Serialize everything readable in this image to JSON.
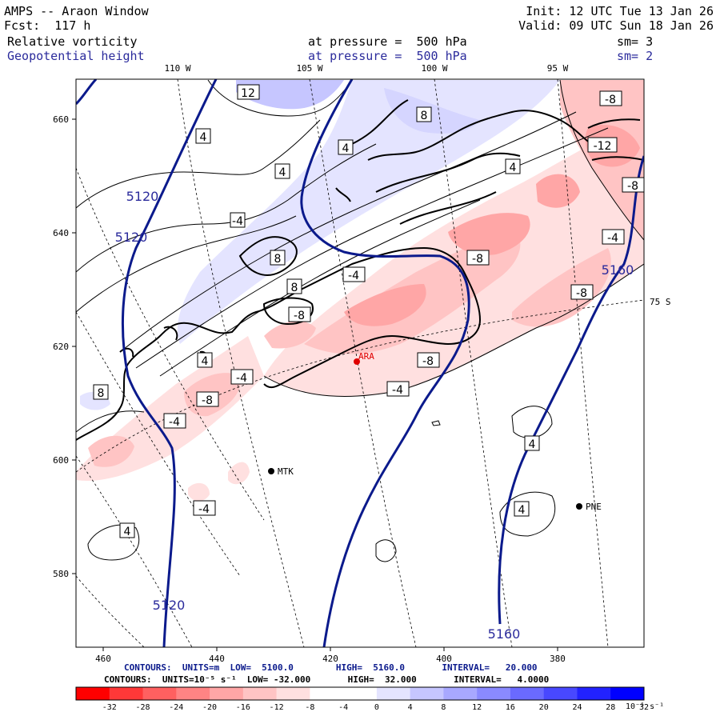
{
  "header": {
    "app": "AMPS -- Araon Window",
    "init": "Init: 12 UTC Tue 13 Jan 26",
    "forecast": "Fcst:  117 h",
    "valid": "Valid: 09 UTC Sun 18 Jan 26",
    "field1": "Relative vorticity",
    "field1_level": "at pressure =  500 hPa",
    "field1_sm": "sm= 3",
    "field2": "Geopotential height",
    "field2_level": "at pressure =  500 hPa",
    "field2_sm": "sm= 2"
  },
  "map": {
    "top_lon_labels": [
      "110 W",
      "105 W",
      "100 W",
      "95 W"
    ],
    "right_lat_label": "75 S",
    "y_axis_labels": [
      "660",
      "640",
      "620",
      "600",
      "580"
    ],
    "x_axis_labels": [
      "460",
      "440",
      "420",
      "400",
      "380"
    ],
    "stations": [
      {
        "name": "ARA",
        "color": "#e00000"
      },
      {
        "name": "MTK",
        "color": "#000000"
      },
      {
        "name": "PNE",
        "color": "#000000"
      }
    ],
    "height_contour_labels": [
      "5120",
      "5120",
      "5120",
      "5160",
      "5160"
    ],
    "vorticity_labels": [
      "12",
      "8",
      "4",
      "4",
      "4",
      "8",
      "8",
      "-4",
      "-8",
      "-8",
      "-12",
      "-8",
      "-4",
      "-8",
      "-8",
      "4",
      "-4",
      "-8",
      "-4",
      "4",
      "8",
      "-4",
      "-8",
      "-4",
      "4",
      "4",
      "-4",
      "4"
    ]
  },
  "footer": {
    "contour1": "CONTOURS:  UNITS=m  LOW=  5100.0        HIGH=  5160.0       INTERVAL=   20.000",
    "contour2": "CONTOURS:  UNITS=10⁻⁵ s⁻¹  LOW= -32.000       HIGH=  32.000       INTERVAL=   4.0000",
    "colorbar_labels": [
      "-32",
      "-28",
      "-24",
      "-20",
      "-16",
      "-12",
      "-8",
      "-4",
      "0",
      "4",
      "8",
      "12",
      "16",
      "20",
      "24",
      "28",
      "32"
    ],
    "colorbar_units": "10⁻⁵ s⁻¹",
    "colorbar_colors": [
      "#ff0000",
      "#ff3838",
      "#ff6060",
      "#ff8484",
      "#ffa6a6",
      "#ffc4c4",
      "#ffe0e0",
      "#ffffff",
      "#ffffff",
      "#e4e4ff",
      "#c6c6ff",
      "#a8a8ff",
      "#8a8aff",
      "#6a6aff",
      "#4848ff",
      "#2222ff",
      "#0000ff"
    ]
  }
}
